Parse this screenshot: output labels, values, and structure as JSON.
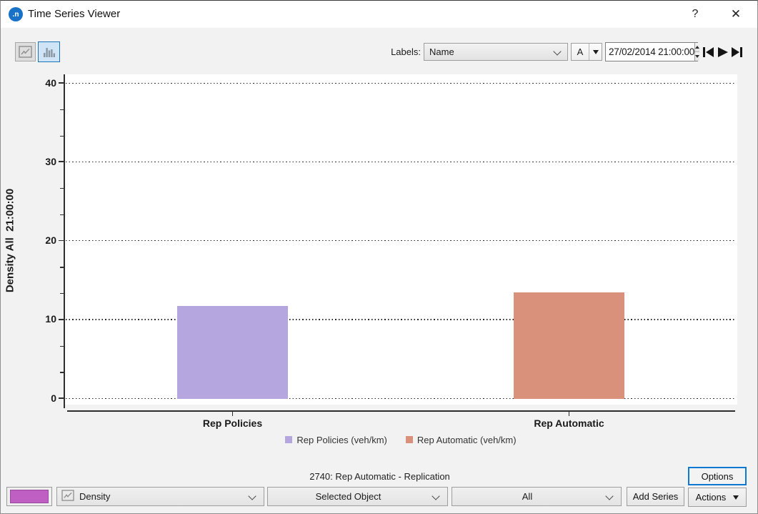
{
  "window": {
    "title": "Time Series Viewer",
    "help": "?",
    "close": "✕"
  },
  "toolbar": {
    "labels_caption": "Labels:",
    "labels_combo_value": "Name",
    "font_button": "A",
    "datetime": "27/02/2014 21:00:00"
  },
  "chart_data": {
    "type": "bar",
    "title": "",
    "ylabel": "Density All  21:00:00",
    "ylim": [
      0,
      40
    ],
    "yticks": [
      0,
      10,
      20,
      30,
      40
    ],
    "minor_ticks_per_interval": 2,
    "grid": "horizontal dotted",
    "legend_position": "bottom-center",
    "categories": [
      "Rep Policies",
      "Rep Automatic"
    ],
    "series": [
      {
        "legend_label": "Rep Policies (veh/km)",
        "category": "Rep Policies",
        "value": 11.7,
        "color": "#b6a6e0"
      },
      {
        "legend_label": "Rep Automatic (veh/km)",
        "category": "Rep Automatic",
        "value": 13.4,
        "color": "#d9917b"
      }
    ]
  },
  "status_text": "2740: Rep Automatic - Replication",
  "bottom_bar": {
    "series_color": "#c05fc3",
    "variable_combo_value": "Density",
    "object_combo_value": "Selected Object",
    "aggregation_combo_value": "All",
    "add_series": "Add Series",
    "options": "Options",
    "actions": "Actions"
  },
  "colors": {
    "accent_blue": "#0c7ad3",
    "toggle_selected_bg": "#cfe4f7",
    "toggle_selected_border": "#1b74b8",
    "logo_blue": "#1a72c8"
  }
}
